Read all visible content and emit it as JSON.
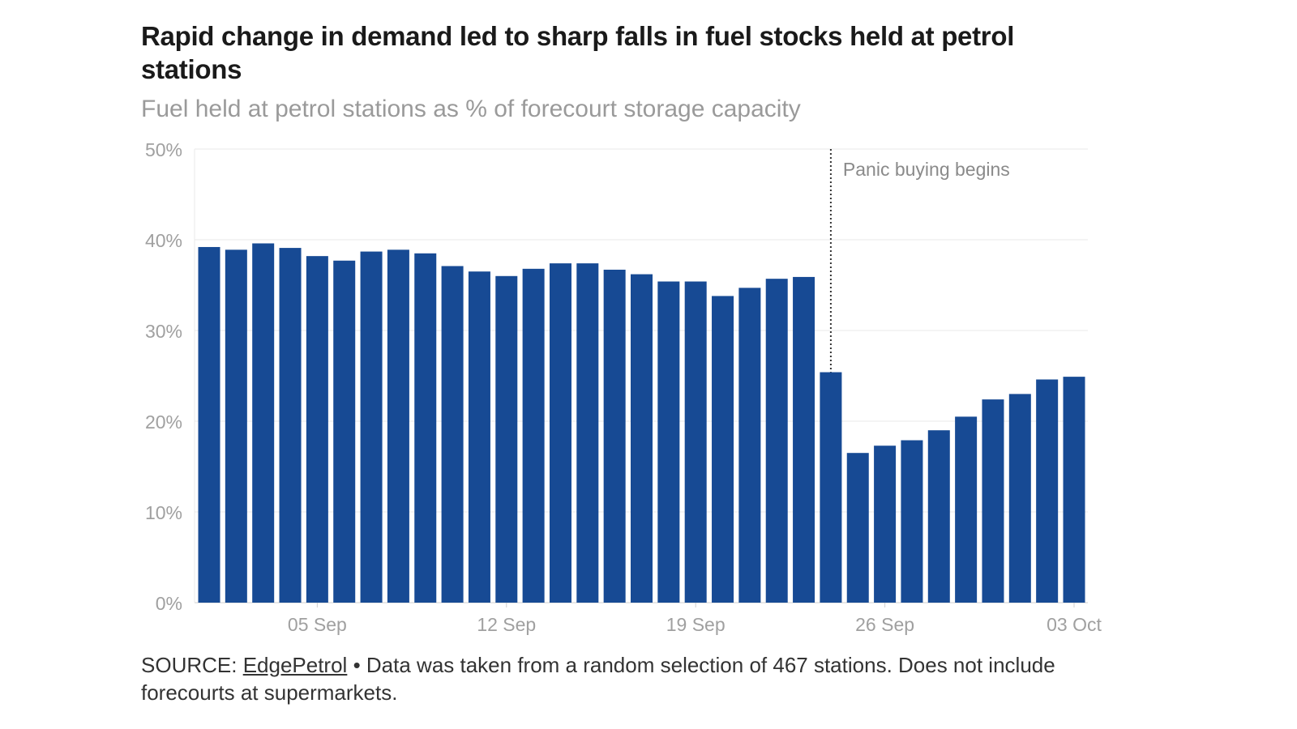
{
  "chart_data": {
    "type": "bar",
    "title": "Rapid change in demand led to sharp falls in fuel stocks held at petrol stations",
    "subtitle": "Fuel held at petrol stations as % of forecourt storage capacity",
    "xlabel": "",
    "ylabel": "",
    "ylim": [
      0,
      50
    ],
    "yticks": [
      "0%",
      "10%",
      "20%",
      "30%",
      "40%",
      "50%"
    ],
    "grid": true,
    "bar_color": "#174a94",
    "categories": [
      "01 Sep",
      "02 Sep",
      "03 Sep",
      "04 Sep",
      "05 Sep",
      "06 Sep",
      "07 Sep",
      "08 Sep",
      "09 Sep",
      "10 Sep",
      "11 Sep",
      "12 Sep",
      "13 Sep",
      "14 Sep",
      "15 Sep",
      "16 Sep",
      "17 Sep",
      "18 Sep",
      "19 Sep",
      "20 Sep",
      "21 Sep",
      "22 Sep",
      "23 Sep",
      "24 Sep",
      "25 Sep",
      "26 Sep",
      "27 Sep",
      "28 Sep",
      "29 Sep",
      "30 Sep",
      "01 Oct",
      "02 Oct",
      "03 Oct"
    ],
    "xtick_labels": [
      {
        "category": "05 Sep",
        "label": "05 Sep"
      },
      {
        "category": "12 Sep",
        "label": "12 Sep"
      },
      {
        "category": "19 Sep",
        "label": "19 Sep"
      },
      {
        "category": "26 Sep",
        "label": "26 Sep"
      },
      {
        "category": "03 Oct",
        "label": "03 Oct"
      }
    ],
    "values": [
      39.2,
      38.9,
      39.6,
      39.1,
      38.2,
      37.7,
      38.7,
      38.9,
      38.5,
      37.1,
      36.5,
      36.0,
      36.8,
      37.4,
      37.4,
      36.7,
      36.2,
      35.4,
      35.4,
      33.8,
      34.7,
      35.7,
      35.9,
      25.4,
      16.5,
      17.3,
      17.9,
      19.0,
      20.5,
      22.4,
      23.0,
      24.6,
      24.9
    ],
    "annotation": {
      "category": "24 Sep",
      "text": "Panic buying begins"
    }
  },
  "footer": {
    "source_prefix": "SOURCE: ",
    "source_link": "EdgePetrol",
    "note": " • Data was taken from a random selection of 467 stations. Does not include forecourts at supermarkets."
  }
}
